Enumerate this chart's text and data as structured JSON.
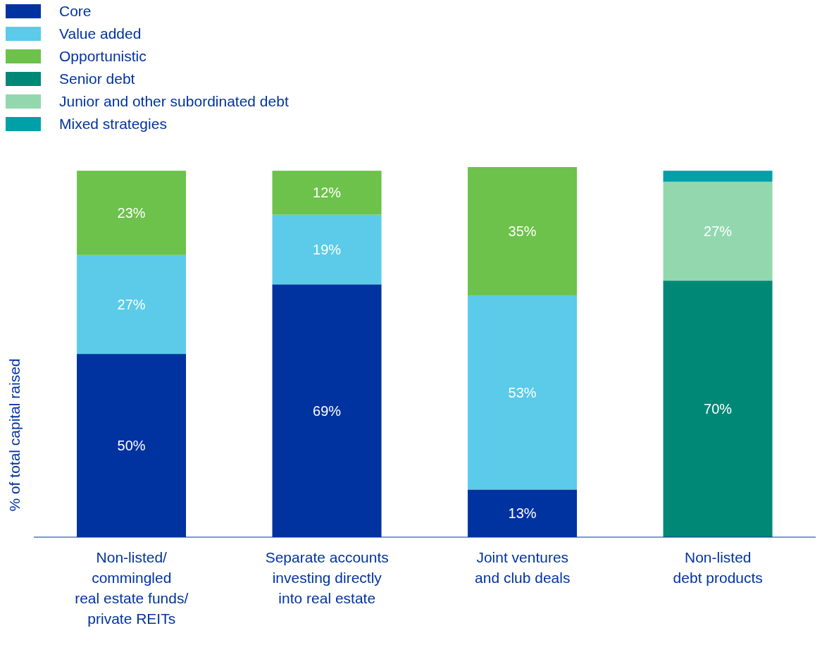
{
  "chart_data": {
    "type": "bar",
    "stacked": true,
    "ylabel": "% of total capital raised",
    "categories": [
      "Non-listed/\ncommingled\nreal estate funds/\nprivate REITs",
      "Separate accounts\ninvesting directly\ninto real estate",
      "Joint ventures\nand club deals",
      "Non-listed\ndebt products"
    ],
    "ylim": [
      0,
      101
    ],
    "tick_labels": "x",
    "legend": "top left",
    "grid": false,
    "series": [
      {
        "name": "Core",
        "color": "#0033a0",
        "values": [
          50,
          69,
          13,
          null
        ],
        "value_labels": [
          "50%",
          "69%",
          "13%",
          null
        ]
      },
      {
        "name": "Value added",
        "color": "#5bcbe9",
        "values": [
          27,
          19,
          53,
          null
        ],
        "value_labels": [
          "27%",
          "19%",
          "53%",
          null
        ]
      },
      {
        "name": "Opportunistic",
        "color": "#6cc24a",
        "values": [
          23,
          12,
          35,
          null
        ],
        "value_labels": [
          "23%",
          "12%",
          "35%",
          null
        ]
      },
      {
        "name": "Senior debt",
        "color": "#008876",
        "values": [
          null,
          null,
          null,
          70
        ],
        "value_labels": [
          null,
          null,
          null,
          "70%"
        ]
      },
      {
        "name": "Junior and other subordinated debt",
        "color": "#93d7ae",
        "values": [
          null,
          null,
          null,
          27
        ],
        "value_labels": [
          null,
          null,
          null,
          "27%"
        ]
      },
      {
        "name": "Mixed strategies",
        "color": "#00a0a8",
        "values": [
          null,
          null,
          null,
          3
        ]
      }
    ]
  }
}
